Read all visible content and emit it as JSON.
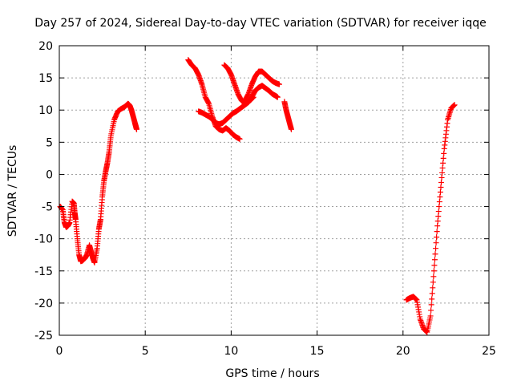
{
  "chart_data": {
    "type": "scatter",
    "title": "Day 257 of 2024, Sidereal Day-to-day VTEC variation (SDTVAR) for receiver iqqe",
    "xlabel": "GPS time / hours",
    "ylabel": "SDTVAR / TECUs",
    "xlim": [
      0,
      25
    ],
    "ylim": [
      -25,
      20
    ],
    "xticks": [
      "0",
      "5",
      "10",
      "15",
      "20",
      "25"
    ],
    "yticks": [
      "20",
      "15",
      "10",
      "5",
      "0",
      "-5",
      "-10",
      "-15",
      "-20",
      "-25"
    ],
    "grid": true,
    "marker": "+",
    "series": [
      {
        "color": "#ff0000",
        "x": [
          0.05,
          0.2,
          0.3,
          0.4,
          0.5,
          0.6,
          0.75,
          0.85,
          0.9,
          0.95,
          1.05,
          1.15,
          1.25,
          1.35,
          1.5,
          1.6,
          1.75,
          1.85,
          1.95,
          2.05,
          2.2,
          2.3,
          2.4,
          2.5,
          2.6,
          2.7,
          2.8,
          2.9,
          3.0,
          3.2,
          3.4,
          3.6,
          3.8,
          4.0,
          4.1,
          4.2,
          4.3,
          4.4,
          4.45,
          4.5
        ],
        "y": [
          -5.0,
          -5.5,
          -7.5,
          -8.2,
          -8.0,
          -7.5,
          -4.2,
          -4.5,
          -6.0,
          -7.0,
          -10.0,
          -12.5,
          -13.5,
          -13.4,
          -13.0,
          -12.5,
          -11.0,
          -12.0,
          -13.0,
          -13.7,
          -11.5,
          -8.5,
          -7.0,
          -3.5,
          -1.0,
          0.5,
          1.8,
          3.5,
          6.0,
          8.5,
          9.8,
          10.2,
          10.5,
          11.0,
          10.7,
          10.0,
          9.0,
          8.0,
          7.5,
          7.0
        ]
      },
      {
        "color": "#ff0000",
        "x": [
          7.5,
          7.7,
          7.9,
          8.1,
          8.3,
          8.5,
          8.7,
          8.9,
          9.1,
          9.3,
          9.5,
          9.7,
          9.9,
          10.1,
          10.3,
          10.5
        ],
        "y": [
          17.8,
          17.0,
          16.5,
          15.5,
          14.0,
          12.0,
          11.0,
          9.0,
          7.5,
          7.0,
          6.8,
          7.2,
          6.8,
          6.2,
          5.8,
          5.5
        ]
      },
      {
        "color": "#ff0000",
        "x": [
          8.1,
          8.3,
          8.5,
          8.7,
          8.9,
          9.1,
          9.3,
          9.5,
          9.7,
          9.9,
          10.1,
          10.3,
          10.5,
          10.7,
          10.9,
          11.1,
          11.3
        ],
        "y": [
          9.8,
          9.6,
          9.3,
          9.0,
          8.6,
          8.0,
          7.8,
          8.0,
          8.5,
          9.0,
          9.5,
          9.8,
          10.2,
          10.6,
          11.0,
          11.5,
          12.0
        ]
      },
      {
        "color": "#ff0000",
        "x": [
          9.6,
          9.8,
          10.0,
          10.2,
          10.4,
          10.6,
          10.8,
          11.0,
          11.2,
          11.4,
          11.6,
          11.8,
          12.0,
          12.2,
          12.4,
          12.6,
          12.7
        ],
        "y": [
          17.0,
          16.5,
          15.5,
          14.0,
          12.5,
          11.5,
          11.0,
          11.2,
          12.0,
          13.0,
          13.5,
          13.8,
          13.4,
          13.0,
          12.5,
          12.2,
          12.0
        ]
      },
      {
        "color": "#ff0000",
        "x": [
          10.8,
          11.0,
          11.2,
          11.4,
          11.6,
          11.8,
          12.0,
          12.2,
          12.4,
          12.6,
          12.8
        ],
        "y": [
          11.5,
          12.5,
          14.0,
          15.2,
          16.0,
          16.0,
          15.5,
          15.0,
          14.5,
          14.2,
          14.0
        ]
      },
      {
        "color": "#ff0000",
        "x": [
          13.1,
          13.2,
          13.3,
          13.4,
          13.5
        ],
        "y": [
          11.3,
          10.0,
          9.0,
          8.0,
          7.0
        ]
      },
      {
        "color": "#ff0000",
        "x": [
          20.2,
          20.4,
          20.6,
          20.8,
          21.0,
          21.2,
          21.4,
          21.6,
          21.8,
          22.0,
          22.2,
          22.4,
          22.6,
          22.8,
          23.0
        ],
        "y": [
          -19.5,
          -19.2,
          -19.0,
          -19.5,
          -22.5,
          -24.0,
          -24.5,
          -22.0,
          -15.0,
          -8.0,
          -2.0,
          4.0,
          8.5,
          10.3,
          10.8
        ]
      }
    ]
  }
}
